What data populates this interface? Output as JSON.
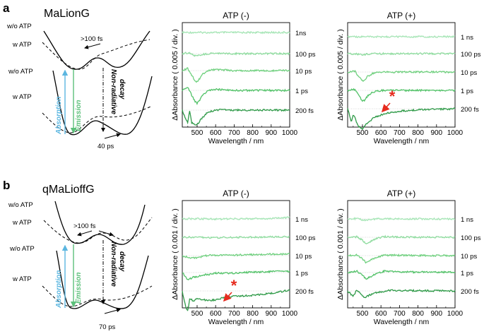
{
  "panels": {
    "a": {
      "letter": "a",
      "title": "MaLionG",
      "diagram": {
        "label_wo_atp_top": "w/o ATP",
        "label_w_atp_top": "w ATP",
        "label_wo_atp_bottom": "w/o ATP",
        "label_w_atp_bottom": "w ATP",
        "time_upper": ">100 fs",
        "time_lower": "40 ps",
        "absorption": "Absorption",
        "emission": "Emission",
        "decay_line1": "Non-radiative",
        "decay_line2": "decay"
      }
    },
    "b": {
      "letter": "b",
      "title": "qMaLioffG",
      "diagram": {
        "label_wo_atp_top": "w/o ATP",
        "label_w_atp_top": "w ATP",
        "label_wo_atp_bottom": "w/o ATP",
        "label_w_atp_bottom": "w ATP",
        "time_upper": ">100 fs",
        "time_lower": "70 ps",
        "absorption": "Absorption",
        "emission": "Emission",
        "decay_line1": "Non-radiative",
        "decay_line2": "decay"
      }
    }
  },
  "chart_data": [
    {
      "id": "a_minus",
      "type": "line",
      "title": "ATP (-)",
      "xlabel": "Wavelength / nm",
      "ylabel": "ΔAbsorbance ( 0.005 / div. )",
      "xlim": [
        420,
        1000
      ],
      "xticks": [
        500,
        600,
        700,
        800,
        900,
        1000
      ],
      "series": [
        {
          "name": "1ns",
          "color": "#a6e6b6",
          "x": [
            420,
            470,
            480,
            490,
            500,
            520,
            560,
            700,
            800,
            1000
          ],
          "y": [
            0,
            0,
            0,
            0,
            0,
            0,
            0,
            0,
            0,
            0
          ]
        },
        {
          "name": "100 ps",
          "color": "#8fdc9f",
          "x": [
            420,
            460,
            480,
            500,
            520,
            560,
            620,
            700,
            1000
          ],
          "y": [
            0,
            0.1,
            -0.15,
            -0.2,
            -0.1,
            0,
            0.05,
            0,
            0
          ]
        },
        {
          "name": "10 ps",
          "color": "#6fd07e",
          "x": [
            420,
            450,
            470,
            490,
            500,
            510,
            530,
            560,
            600,
            700,
            1000
          ],
          "y": [
            0,
            0.2,
            -0.4,
            -0.9,
            -1.0,
            -0.8,
            -0.3,
            0,
            0.1,
            0,
            0
          ]
        },
        {
          "name": "1 ps",
          "color": "#52c268",
          "x": [
            420,
            450,
            470,
            490,
            500,
            510,
            530,
            560,
            600,
            700,
            1000
          ],
          "y": [
            0,
            0.3,
            -0.4,
            -1.0,
            -1.15,
            -0.95,
            -0.4,
            0,
            0.1,
            0,
            0
          ]
        },
        {
          "name": "200 fs",
          "color": "#2f9a48",
          "x": [
            420,
            440,
            450,
            460,
            470,
            480,
            500,
            520,
            560,
            620,
            700,
            800,
            1000
          ],
          "y": [
            0,
            -0.9,
            -1.1,
            0,
            -1.1,
            -1.2,
            -1.3,
            -0.8,
            -0.15,
            0.05,
            0,
            0,
            0
          ]
        }
      ],
      "annotations": []
    },
    {
      "id": "a_plus",
      "type": "line",
      "title": "ATP (+)",
      "xlabel": "Wavelength / nm",
      "ylabel": "ΔAbsorbance ( 0.005 / div. )",
      "xlim": [
        420,
        1000
      ],
      "xticks": [
        500,
        600,
        700,
        800,
        900,
        1000
      ],
      "series": [
        {
          "name": "1 ns",
          "color": "#a6e6b6",
          "x": [
            420,
            1000
          ],
          "y": [
            0,
            0
          ]
        },
        {
          "name": "100 ps",
          "color": "#8fdc9f",
          "x": [
            420,
            480,
            500,
            520,
            560,
            1000
          ],
          "y": [
            0,
            -0.05,
            -0.12,
            -0.05,
            0,
            0
          ]
        },
        {
          "name": "10 ps",
          "color": "#6fd07e",
          "x": [
            420,
            460,
            480,
            500,
            510,
            530,
            560,
            600,
            1000
          ],
          "y": [
            0,
            0.1,
            -0.5,
            -0.9,
            -0.85,
            -0.4,
            -0.1,
            0,
            0
          ]
        },
        {
          "name": "1 ps",
          "color": "#52c268",
          "x": [
            420,
            460,
            480,
            500,
            510,
            530,
            560,
            600,
            1000
          ],
          "y": [
            0,
            0.1,
            -0.5,
            -1.1,
            -1.05,
            -0.5,
            -0.15,
            0,
            0
          ]
        },
        {
          "name": "200 fs",
          "color": "#2f9a48",
          "x": [
            420,
            440,
            450,
            460,
            470,
            480,
            500,
            520,
            560,
            620,
            700,
            800,
            1000
          ],
          "y": [
            0,
            -1.3,
            -0.7,
            -0.9,
            -1.5,
            -1.8,
            -2.0,
            -1.6,
            -0.9,
            -0.5,
            -0.25,
            -0.1,
            0
          ]
        }
      ],
      "annotations": [
        {
          "text": "*"
        }
      ]
    },
    {
      "id": "b_minus",
      "type": "line",
      "title": "ATP (-)",
      "xlabel": "Wavelength / nm",
      "ylabel": "ΔAbsorbance ( 0.001 / div. )",
      "xlim": [
        420,
        1000
      ],
      "xticks": [
        500,
        600,
        700,
        800,
        900,
        1000
      ],
      "series": [
        {
          "name": "1 ns",
          "color": "#a6e6b6",
          "x": [
            420,
            500,
            600,
            700,
            800,
            900,
            1000
          ],
          "y": [
            0,
            0.05,
            -0.05,
            0,
            0.05,
            0.05,
            0.3
          ]
        },
        {
          "name": "100 ps",
          "color": "#8fdc9f",
          "x": [
            420,
            500,
            600,
            700,
            800,
            900,
            1000
          ],
          "y": [
            0,
            0,
            -0.1,
            0,
            0,
            0.1,
            0.1
          ]
        },
        {
          "name": "10 ps",
          "color": "#6fd07e",
          "x": [
            420,
            460,
            500,
            550,
            600,
            700,
            800,
            900,
            1000
          ],
          "y": [
            0,
            -0.5,
            -0.4,
            0,
            0.1,
            0.1,
            0.2,
            0.3,
            0.3
          ]
        },
        {
          "name": "1 ps",
          "color": "#52c268",
          "x": [
            420,
            450,
            480,
            500,
            530,
            560,
            600,
            700,
            800,
            900,
            1000
          ],
          "y": [
            0,
            -1.5,
            -0.9,
            -0.8,
            -0.5,
            -0.4,
            -0.1,
            -0.1,
            0.1,
            0.2,
            0.25
          ]
        },
        {
          "name": "200 fs",
          "color": "#2f9a48",
          "x": [
            420,
            440,
            450,
            460,
            480,
            500,
            530,
            560,
            600,
            650,
            700,
            800,
            900,
            1000
          ],
          "y": [
            0,
            -3.5,
            -4,
            -1.5,
            -2,
            -1.6,
            -1.7,
            -2,
            -1.8,
            -1.3,
            -1.1,
            -0.9,
            -0.5,
            0.2
          ]
        }
      ],
      "annotations": [
        {
          "text": "*"
        }
      ]
    },
    {
      "id": "b_plus",
      "type": "line",
      "title": "ATP (+)",
      "xlabel": "Wavelength / nm",
      "ylabel": "ΔAbsorbance ( 0.001 / div. )",
      "xlim": [
        420,
        1000
      ],
      "xticks": [
        500,
        600,
        700,
        800,
        900,
        1000
      ],
      "series": [
        {
          "name": "1 ns",
          "color": "#a6e6b6",
          "x": [
            420,
            480,
            500,
            520,
            560,
            600,
            700,
            1000
          ],
          "y": [
            0,
            0.05,
            -0.2,
            -0.3,
            -0.05,
            0.05,
            0,
            0
          ]
        },
        {
          "name": "100 ps",
          "color": "#8fdc9f",
          "x": [
            420,
            470,
            500,
            520,
            540,
            580,
            620,
            700,
            1000
          ],
          "y": [
            0,
            0.1,
            -0.6,
            -1.3,
            -0.9,
            -0.2,
            0.1,
            0.05,
            0
          ]
        },
        {
          "name": "10 ps",
          "color": "#6fd07e",
          "x": [
            420,
            470,
            500,
            520,
            540,
            580,
            620,
            700,
            1000
          ],
          "y": [
            0,
            0.1,
            -0.7,
            -1.4,
            -1.0,
            -0.3,
            0.1,
            0.05,
            0
          ]
        },
        {
          "name": "1 ps",
          "color": "#52c268",
          "x": [
            420,
            470,
            500,
            520,
            540,
            580,
            620,
            700,
            1000
          ],
          "y": [
            0,
            0.3,
            -0.5,
            -1.3,
            -0.9,
            -0.1,
            0.3,
            0.1,
            0.1
          ]
        },
        {
          "name": "200 fs",
          "color": "#2f9a48",
          "x": [
            420,
            450,
            470,
            490,
            510,
            530,
            560,
            600,
            640,
            700,
            800,
            1000
          ],
          "y": [
            0,
            -1.1,
            0.2,
            -0.6,
            -1.4,
            -1.0,
            -0.5,
            -0.2,
            0.1,
            0.1,
            0.05,
            0
          ]
        }
      ],
      "annotations": []
    }
  ]
}
